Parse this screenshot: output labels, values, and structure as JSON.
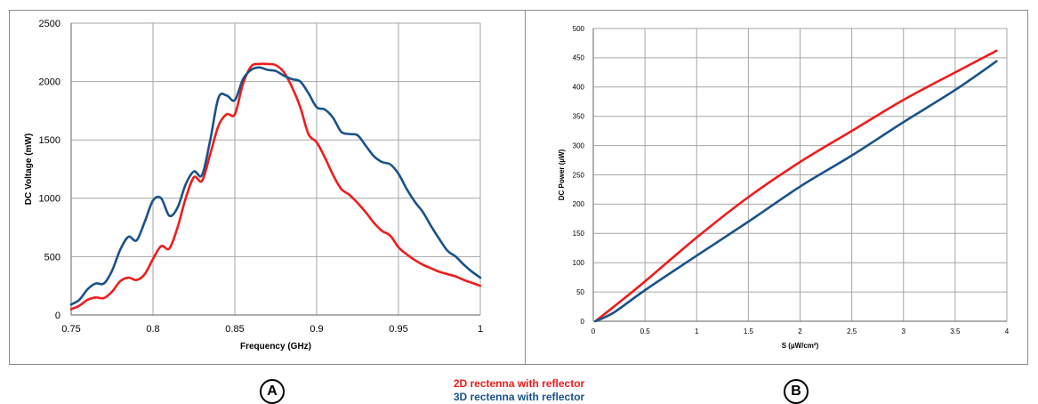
{
  "colors": {
    "series_2d": "#ee1c1c",
    "series_3d": "#1a5289",
    "grid": "#a6a6a6",
    "frame": "#8c8c8c"
  },
  "legend": {
    "item_2d": "2D rectenna with reflector",
    "item_3d": "3D rectenna with reflector"
  },
  "panels": {
    "a_label": "A",
    "b_label": "B"
  },
  "chart_data": [
    {
      "id": "A",
      "type": "line",
      "title": "",
      "xlabel": "Frequency (GHz)",
      "ylabel": "DC Voltage (mW)",
      "xlim": [
        0.75,
        1
      ],
      "ylim": [
        0,
        2500
      ],
      "xticks": [
        0.75,
        0.8,
        0.85,
        0.9,
        0.95,
        1
      ],
      "xtick_labels": [
        "0.75",
        "0.8",
        "0.85",
        "0.9",
        "0.95",
        "1"
      ],
      "yticks": [
        0,
        500,
        1000,
        1500,
        2000,
        2500
      ],
      "ytick_labels": [
        "0",
        "500",
        "1000",
        "1500",
        "2000",
        "2500"
      ],
      "grid": true,
      "series": [
        {
          "name": "2D rectenna with reflector",
          "x": [
            0.75,
            0.755,
            0.76,
            0.765,
            0.77,
            0.775,
            0.78,
            0.785,
            0.79,
            0.795,
            0.8,
            0.805,
            0.81,
            0.815,
            0.82,
            0.825,
            0.83,
            0.835,
            0.84,
            0.845,
            0.85,
            0.855,
            0.86,
            0.865,
            0.87,
            0.875,
            0.88,
            0.885,
            0.89,
            0.895,
            0.9,
            0.905,
            0.91,
            0.915,
            0.92,
            0.925,
            0.93,
            0.935,
            0.94,
            0.945,
            0.95,
            0.955,
            0.96,
            0.965,
            0.97,
            0.975,
            0.98,
            0.985,
            0.99,
            0.995,
            1
          ],
          "y": [
            50,
            80,
            130,
            150,
            145,
            200,
            290,
            320,
            300,
            350,
            480,
            590,
            570,
            750,
            1000,
            1180,
            1150,
            1380,
            1620,
            1720,
            1720,
            1980,
            2130,
            2150,
            2150,
            2140,
            2080,
            1950,
            1780,
            1550,
            1480,
            1350,
            1200,
            1080,
            1030,
            960,
            880,
            790,
            720,
            680,
            580,
            520,
            470,
            430,
            400,
            370,
            350,
            330,
            300,
            275,
            250
          ]
        },
        {
          "name": "3D rectenna with reflector",
          "x": [
            0.75,
            0.755,
            0.76,
            0.765,
            0.77,
            0.775,
            0.78,
            0.785,
            0.79,
            0.795,
            0.8,
            0.805,
            0.81,
            0.815,
            0.82,
            0.825,
            0.83,
            0.835,
            0.84,
            0.845,
            0.85,
            0.855,
            0.86,
            0.865,
            0.87,
            0.875,
            0.88,
            0.885,
            0.89,
            0.895,
            0.9,
            0.905,
            0.91,
            0.915,
            0.92,
            0.925,
            0.93,
            0.935,
            0.94,
            0.945,
            0.95,
            0.955,
            0.96,
            0.965,
            0.97,
            0.975,
            0.98,
            0.985,
            0.99,
            0.995,
            1
          ],
          "y": [
            90,
            130,
            220,
            270,
            270,
            380,
            560,
            670,
            640,
            800,
            980,
            1000,
            850,
            920,
            1120,
            1230,
            1200,
            1500,
            1860,
            1880,
            1840,
            2020,
            2100,
            2120,
            2100,
            2090,
            2050,
            2020,
            2000,
            1900,
            1780,
            1760,
            1690,
            1570,
            1550,
            1540,
            1450,
            1360,
            1310,
            1290,
            1210,
            1080,
            970,
            880,
            760,
            650,
            550,
            500,
            430,
            370,
            320
          ]
        }
      ]
    },
    {
      "id": "B",
      "type": "line",
      "title": "",
      "xlabel": "S (µW/cm²)",
      "ylabel": "DC Power (µW)",
      "xlim": [
        0,
        4
      ],
      "ylim": [
        0,
        500
      ],
      "xticks": [
        0,
        0.5,
        1,
        1.5,
        2,
        2.5,
        3,
        3.5,
        4
      ],
      "xtick_labels": [
        "0",
        "0.5",
        "1",
        "1.5",
        "2",
        "2.5",
        "3",
        "3.5",
        "4"
      ],
      "yticks": [
        0,
        50,
        100,
        150,
        200,
        250,
        300,
        350,
        400,
        450,
        500
      ],
      "ytick_labels": [
        "0",
        "50",
        "100",
        "150",
        "200",
        "250",
        "300",
        "350",
        "400",
        "450",
        "500"
      ],
      "grid": true,
      "series": [
        {
          "name": "2D rectenna with reflector",
          "x": [
            0.02,
            0.2,
            0.5,
            1,
            1.5,
            2,
            2.5,
            3,
            3.5,
            3.9
          ],
          "y": [
            0,
            25,
            68,
            143,
            212,
            272,
            325,
            378,
            425,
            462
          ]
        },
        {
          "name": "3D rectenna with reflector",
          "x": [
            0.02,
            0.2,
            0.5,
            1,
            1.5,
            2,
            2.5,
            3,
            3.5,
            3.9
          ],
          "y": [
            0,
            15,
            53,
            112,
            170,
            230,
            283,
            340,
            395,
            444
          ]
        }
      ]
    }
  ]
}
